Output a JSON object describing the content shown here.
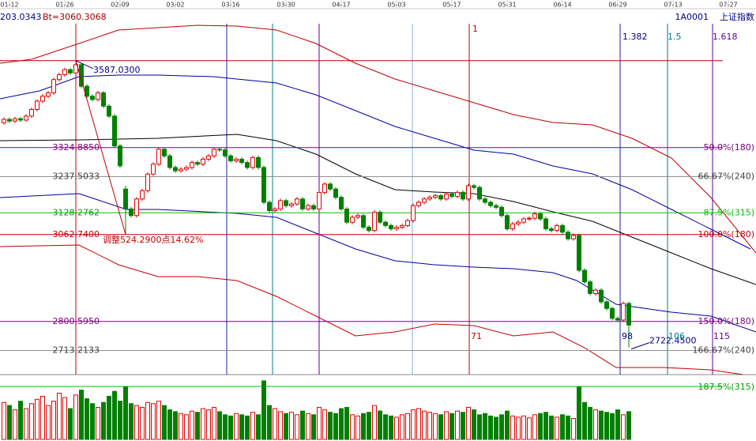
{
  "header": {
    "value_text": "203.0343",
    "bt": "Bt=3060.3068",
    "code": "1A0001",
    "name": "上证指数"
  },
  "chart_data": {
    "type": "candlestick",
    "xlim": [
      0,
      136
    ],
    "ylim": [
      2650,
      3770
    ],
    "vlim": [
      0,
      100
    ],
    "xticks": [
      {
        "value": 1,
        "label": "01-12"
      },
      {
        "value": 11,
        "label": "01-26"
      },
      {
        "value": 21,
        "label": "02-09"
      },
      {
        "value": 31,
        "label": "03-02"
      },
      {
        "value": 41,
        "label": "03-16"
      },
      {
        "value": 51,
        "label": "03-30"
      },
      {
        "value": 61,
        "label": "04-17"
      },
      {
        "value": 71,
        "label": "05-03"
      },
      {
        "value": 81,
        "label": "05-17"
      },
      {
        "value": 91,
        "label": "05-31"
      },
      {
        "value": 101,
        "label": "06-14"
      },
      {
        "value": 111,
        "label": "06-29"
      },
      {
        "value": 121,
        "label": "07-13"
      },
      {
        "value": 131,
        "label": "07-27"
      }
    ],
    "up_color": "#e00000",
    "down_color": "#008000",
    "candles": [
      [
        3400,
        3416,
        3394,
        3410
      ],
      [
        3410,
        3416,
        3399,
        3405
      ],
      [
        3405,
        3418,
        3399,
        3412
      ],
      [
        3412,
        3418,
        3402,
        3408
      ],
      [
        3408,
        3426,
        3402,
        3420
      ],
      [
        3420,
        3446,
        3414,
        3440
      ],
      [
        3440,
        3471,
        3434,
        3465
      ],
      [
        3465,
        3486,
        3459,
        3480
      ],
      [
        3480,
        3496,
        3474,
        3490
      ],
      [
        3490,
        3536,
        3484,
        3530
      ],
      [
        3530,
        3551,
        3524,
        3545
      ],
      [
        3545,
        3566,
        3539,
        3560
      ],
      [
        3560,
        3566,
        3544,
        3550
      ],
      [
        3550,
        3587.03,
        3544,
        3575
      ],
      [
        3575,
        3581,
        3504,
        3510
      ],
      [
        3510,
        3516,
        3474,
        3480
      ],
      [
        3480,
        3486,
        3464,
        3470
      ],
      [
        3470,
        3496,
        3464,
        3490
      ],
      [
        3490,
        3496,
        3444,
        3450
      ],
      [
        3450,
        3456,
        3414,
        3420
      ],
      [
        3420,
        3426,
        3324,
        3330
      ],
      [
        3330,
        3336,
        3264,
        3270
      ],
      [
        3200,
        3210,
        3062.74,
        3140
      ],
      [
        3140,
        3146,
        3114,
        3120
      ],
      [
        3120,
        3176,
        3114,
        3170
      ],
      [
        3170,
        3201,
        3164,
        3195
      ],
      [
        3195,
        3251,
        3189,
        3245
      ],
      [
        3245,
        3281,
        3239,
        3275
      ],
      [
        3275,
        3326,
        3269,
        3320
      ],
      [
        3320,
        3326,
        3294,
        3300
      ],
      [
        3300,
        3306,
        3259,
        3265
      ],
      [
        3265,
        3271,
        3249,
        3255
      ],
      [
        3255,
        3266,
        3249,
        3260
      ],
      [
        3260,
        3271,
        3254,
        3265
      ],
      [
        3265,
        3286,
        3259,
        3280
      ],
      [
        3280,
        3286,
        3269,
        3275
      ],
      [
        3275,
        3296,
        3269,
        3290
      ],
      [
        3290,
        3306,
        3284,
        3300
      ],
      [
        3300,
        3326,
        3294,
        3320
      ],
      [
        3320,
        3326,
        3312,
        3318
      ],
      [
        3318,
        3324,
        3294,
        3300
      ],
      [
        3300,
        3306,
        3279,
        3285
      ],
      [
        3285,
        3296,
        3279,
        3290
      ],
      [
        3290,
        3296,
        3274,
        3280
      ],
      [
        3280,
        3286,
        3259,
        3265
      ],
      [
        3265,
        3301,
        3259,
        3295
      ],
      [
        3295,
        3301,
        3259,
        3265
      ],
      [
        3265,
        3271,
        3154,
        3160
      ],
      [
        3160,
        3166,
        3129,
        3135
      ],
      [
        3135,
        3146,
        3129,
        3140
      ],
      [
        3140,
        3171,
        3134,
        3165
      ],
      [
        3165,
        3171,
        3144,
        3150
      ],
      [
        3150,
        3161,
        3144,
        3155
      ],
      [
        3155,
        3176,
        3149,
        3170
      ],
      [
        3170,
        3176,
        3134,
        3140
      ],
      [
        3140,
        3156,
        3134,
        3150
      ],
      [
        3150,
        3156,
        3134,
        3140
      ],
      [
        3140,
        3196,
        3134,
        3190
      ],
      [
        3190,
        3221,
        3184,
        3215
      ],
      [
        3215,
        3221,
        3194,
        3200
      ],
      [
        3200,
        3206,
        3169,
        3175
      ],
      [
        3175,
        3181,
        3134,
        3140
      ],
      [
        3140,
        3146,
        3094,
        3100
      ],
      [
        3100,
        3121,
        3094,
        3115
      ],
      [
        3115,
        3126,
        3109,
        3120
      ],
      [
        3120,
        3126,
        3079,
        3085
      ],
      [
        3085,
        3091,
        3069,
        3075
      ],
      [
        3075,
        3136,
        3069,
        3130
      ],
      [
        3130,
        3136,
        3094,
        3100
      ],
      [
        3100,
        3106,
        3084,
        3090
      ],
      [
        3090,
        3096,
        3074,
        3080
      ],
      [
        3080,
        3091,
        3074,
        3085
      ],
      [
        3085,
        3096,
        3079,
        3090
      ],
      [
        3090,
        3111,
        3084,
        3105
      ],
      [
        3105,
        3156,
        3099,
        3150
      ],
      [
        3150,
        3166,
        3144,
        3160
      ],
      [
        3160,
        3176,
        3154,
        3170
      ],
      [
        3170,
        3181,
        3164,
        3175
      ],
      [
        3175,
        3186,
        3169,
        3180
      ],
      [
        3180,
        3186,
        3164,
        3170
      ],
      [
        3170,
        3191,
        3164,
        3185
      ],
      [
        3185,
        3191,
        3172,
        3178
      ],
      [
        3178,
        3196,
        3172,
        3190
      ],
      [
        3190,
        3196,
        3164,
        3170
      ],
      [
        3170,
        3216,
        3164,
        3210
      ],
      [
        3210,
        3216,
        3199,
        3205
      ],
      [
        3205,
        3211,
        3164,
        3170
      ],
      [
        3170,
        3176,
        3154,
        3160
      ],
      [
        3160,
        3166,
        3144,
        3150
      ],
      [
        3150,
        3156,
        3139,
        3145
      ],
      [
        3145,
        3151,
        3114,
        3120
      ],
      [
        3120,
        3126,
        3074,
        3080
      ],
      [
        3080,
        3101,
        3074,
        3095
      ],
      [
        3095,
        3106,
        3089,
        3100
      ],
      [
        3100,
        3116,
        3094,
        3110
      ],
      [
        3110,
        3118,
        3104,
        3112
      ],
      [
        3112,
        3131,
        3106,
        3125
      ],
      [
        3125,
        3131,
        3104,
        3110
      ],
      [
        3110,
        3116,
        3074,
        3080
      ],
      [
        3080,
        3086,
        3069,
        3075
      ],
      [
        3075,
        3096,
        3069,
        3090
      ],
      [
        3090,
        3096,
        3064,
        3070
      ],
      [
        3070,
        3076,
        3044,
        3050
      ],
      [
        3050,
        3066,
        3044,
        3060
      ],
      [
        3060,
        3066,
        2949,
        2955
      ],
      [
        2955,
        2961,
        2914,
        2920
      ],
      [
        2920,
        2926,
        2879,
        2885
      ],
      [
        2885,
        2901,
        2879,
        2895
      ],
      [
        2895,
        2901,
        2854,
        2860
      ],
      [
        2860,
        2866,
        2834,
        2840
      ],
      [
        2840,
        2846,
        2804,
        2810
      ],
      [
        2810,
        2816,
        2799,
        2805
      ],
      [
        2805,
        2861,
        2799,
        2855
      ],
      [
        2855,
        2861,
        2722.45,
        2790
      ]
    ],
    "volumes": [
      60,
      55,
      48,
      62,
      50,
      58,
      65,
      70,
      55,
      62,
      75,
      68,
      50,
      72,
      80,
      66,
      58,
      52,
      60,
      70,
      78,
      62,
      85,
      58,
      55,
      52,
      60,
      58,
      62,
      55,
      48,
      45,
      42,
      40,
      46,
      44,
      50,
      48,
      52,
      45,
      40,
      38,
      42,
      40,
      38,
      44,
      40,
      95,
      55,
      50,
      45,
      42,
      44,
      40,
      46,
      42,
      40,
      52,
      48,
      44,
      42,
      50,
      52,
      40,
      38,
      42,
      44,
      55,
      46,
      40,
      38,
      36,
      40,
      42,
      48,
      50,
      46,
      44,
      42,
      40,
      45,
      42,
      46,
      44,
      52,
      48,
      40,
      42,
      38,
      36,
      40,
      46,
      38,
      36,
      38,
      35,
      40,
      42,
      44,
      38,
      36,
      40,
      38,
      34,
      85,
      60,
      52,
      48,
      46,
      44,
      42,
      48,
      40,
      45
    ],
    "levels": [
      {
        "value": 3324.885,
        "label": "3324.8850",
        "ratio": "50.0%(180)",
        "color": "#800080"
      },
      {
        "value": 3237.5033,
        "label": "3237.5033",
        "ratio": "66.67%(240)",
        "color": "#909090"
      },
      {
        "value": 3128.2762,
        "label": "3128.2762",
        "ratio": "87.5%(315)",
        "color": "#00c000"
      },
      {
        "value": 3062.74,
        "label": "3062.7400",
        "ratio": "100.0%(180)",
        "color": "#c00000"
      },
      {
        "value": 2800.595,
        "label": "2800.5950",
        "ratio": "150.0%(180)",
        "color": "#800080"
      },
      {
        "value": 2713.2133,
        "label": "2713.2133",
        "ratio": "166.67%(240)",
        "color": "#909090"
      }
    ],
    "peak": {
      "value": 3587.03,
      "label": "3587.0300"
    },
    "low": {
      "value": 2722.45,
      "label": "2722.4500"
    },
    "adjust_label": "调整524.2900点14.62%",
    "volume_ratio": "187.5%(315)",
    "time_labels": [
      "1",
      "1.382",
      "1.5",
      "1.618",
      "71",
      "98",
      "106",
      "115"
    ]
  }
}
